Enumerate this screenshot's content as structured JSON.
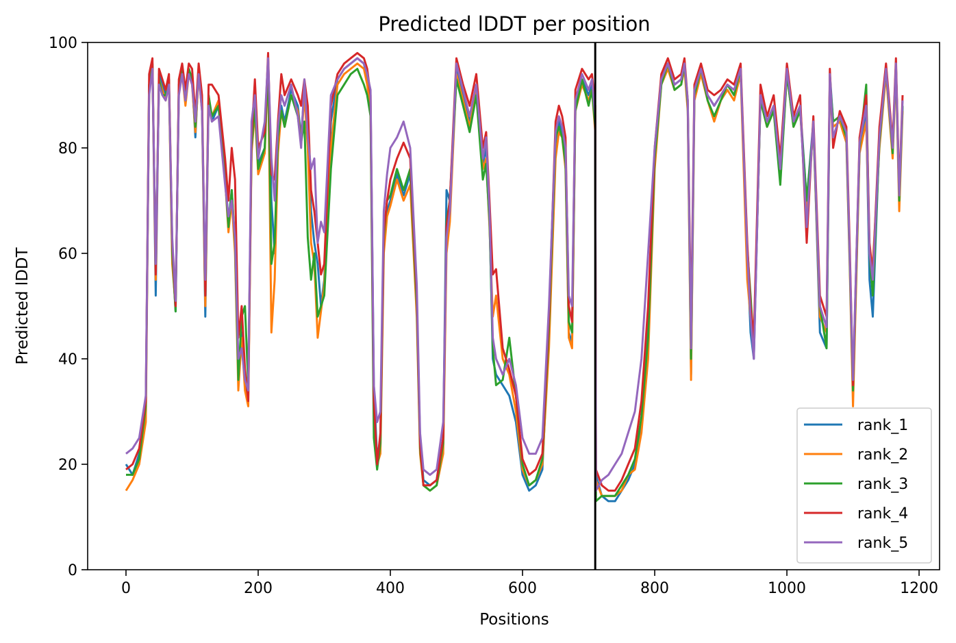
{
  "chart_data": {
    "type": "line",
    "title": "Predicted lDDT per position",
    "xlabel": "Positions",
    "ylabel": "Predicted lDDT",
    "xlim": [
      -58,
      1231
    ],
    "ylim": [
      0,
      100
    ],
    "xticks": [
      0,
      200,
      400,
      600,
      800,
      1000,
      1200
    ],
    "yticks": [
      0,
      20,
      40,
      60,
      80,
      100
    ],
    "grid": false,
    "legend_position": "bottom-right",
    "chain_break": 710,
    "colors": {
      "rank_1": "#1f77b4",
      "rank_2": "#ff7f0e",
      "rank_3": "#2ca02c",
      "rank_4": "#d62728",
      "rank_5": "#9467bd"
    },
    "x": [
      0,
      10,
      20,
      30,
      35,
      40,
      45,
      50,
      55,
      60,
      65,
      70,
      75,
      80,
      85,
      90,
      95,
      100,
      105,
      110,
      115,
      120,
      125,
      130,
      140,
      150,
      155,
      160,
      165,
      170,
      175,
      180,
      185,
      190,
      195,
      200,
      210,
      215,
      220,
      225,
      230,
      235,
      240,
      250,
      260,
      265,
      270,
      275,
      280,
      285,
      290,
      295,
      300,
      310,
      320,
      330,
      340,
      350,
      360,
      365,
      370,
      375,
      380,
      385,
      390,
      395,
      400,
      410,
      420,
      430,
      440,
      445,
      450,
      460,
      470,
      480,
      485,
      490,
      500,
      510,
      520,
      530,
      540,
      545,
      550,
      555,
      560,
      570,
      580,
      590,
      600,
      610,
      620,
      630,
      640,
      650,
      655,
      660,
      665,
      670,
      675,
      680,
      690,
      700,
      705,
      710,
      711,
      720,
      730,
      740,
      750,
      760,
      770,
      780,
      790,
      800,
      810,
      820,
      830,
      840,
      845,
      850,
      855,
      860,
      870,
      880,
      890,
      900,
      910,
      920,
      930,
      940,
      945,
      950,
      960,
      970,
      980,
      990,
      1000,
      1010,
      1020,
      1030,
      1040,
      1050,
      1060,
      1065,
      1070,
      1080,
      1090,
      1095,
      1100,
      1110,
      1120,
      1125,
      1130,
      1140,
      1150,
      1160,
      1165,
      1170,
      1175
    ],
    "series": [
      {
        "name": "rank_1",
        "values": [
          20,
          18,
          22,
          30,
          92,
          96,
          52,
          94,
          92,
          90,
          93,
          60,
          49,
          92,
          95,
          90,
          95,
          93,
          82,
          95,
          88,
          48,
          90,
          85,
          88,
          75,
          66,
          72,
          61,
          37,
          45,
          35,
          33,
          80,
          88,
          77,
          80,
          97,
          70,
          60,
          80,
          88,
          85,
          91,
          88,
          82,
          91,
          83,
          68,
          62,
          58,
          50,
          55,
          85,
          93,
          95,
          96,
          97,
          96,
          93,
          88,
          35,
          21,
          25,
          62,
          68,
          70,
          75,
          71,
          75,
          50,
          25,
          17,
          16,
          17,
          25,
          72,
          70,
          95,
          90,
          85,
          92,
          77,
          80,
          67,
          40,
          37,
          35,
          33,
          28,
          18,
          15,
          16,
          19,
          45,
          80,
          85,
          83,
          78,
          45,
          43,
          88,
          93,
          90,
          92,
          85,
          18,
          14,
          13,
          13,
          15,
          17,
          20,
          28,
          45,
          78,
          93,
          96,
          92,
          93,
          96,
          88,
          37,
          90,
          95,
          90,
          88,
          90,
          92,
          90,
          95,
          60,
          45,
          40,
          90,
          85,
          88,
          75,
          95,
          85,
          88,
          70,
          85,
          45,
          42,
          94,
          85,
          86,
          82,
          60,
          33,
          80,
          86,
          55,
          48,
          82,
          95,
          80,
          96,
          70,
          88
        ]
      },
      {
        "name": "rank_2",
        "values": [
          15,
          17,
          20,
          28,
          91,
          95,
          55,
          93,
          91,
          89,
          92,
          58,
          50,
          91,
          94,
          88,
          94,
          92,
          83,
          94,
          87,
          50,
          89,
          86,
          89,
          74,
          64,
          70,
          60,
          34,
          44,
          34,
          31,
          79,
          87,
          75,
          79,
          96,
          45,
          55,
          79,
          87,
          84,
          90,
          87,
          81,
          90,
          80,
          62,
          58,
          44,
          49,
          54,
          80,
          92,
          94,
          95,
          96,
          95,
          92,
          87,
          30,
          20,
          22,
          60,
          67,
          69,
          74,
          70,
          73,
          48,
          22,
          16,
          15,
          16,
          22,
          60,
          66,
          94,
          89,
          84,
          91,
          76,
          78,
          65,
          48,
          52,
          40,
          37,
          30,
          19,
          16,
          17,
          20,
          42,
          78,
          83,
          82,
          76,
          44,
          42,
          87,
          92,
          89,
          91,
          83,
          17,
          14,
          14,
          14,
          15,
          18,
          19,
          26,
          40,
          76,
          92,
          95,
          91,
          92,
          95,
          87,
          36,
          89,
          94,
          89,
          85,
          89,
          91,
          89,
          94,
          55,
          48,
          42,
          89,
          84,
          87,
          74,
          94,
          84,
          87,
          68,
          84,
          48,
          45,
          93,
          84,
          85,
          81,
          58,
          31,
          79,
          85,
          60,
          58,
          80,
          94,
          78,
          95,
          68,
          87
        ]
      },
      {
        "name": "rank_3",
        "values": [
          18,
          18,
          21,
          31,
          92,
          96,
          57,
          93,
          90,
          90,
          93,
          60,
          49,
          92,
          95,
          89,
          95,
          93,
          84,
          95,
          88,
          52,
          90,
          86,
          88,
          74,
          65,
          72,
          62,
          36,
          48,
          50,
          35,
          80,
          88,
          76,
          80,
          96,
          58,
          62,
          82,
          87,
          84,
          90,
          86,
          81,
          85,
          63,
          55,
          60,
          48,
          50,
          52,
          76,
          90,
          92,
          94,
          95,
          92,
          90,
          86,
          25,
          19,
          24,
          63,
          70,
          71,
          76,
          72,
          76,
          50,
          23,
          16,
          15,
          16,
          24,
          66,
          70,
          93,
          88,
          83,
          90,
          74,
          77,
          66,
          42,
          35,
          36,
          44,
          33,
          20,
          16,
          17,
          21,
          46,
          82,
          84,
          82,
          77,
          47,
          45,
          87,
          93,
          88,
          91,
          84,
          13,
          14,
          14,
          14,
          16,
          18,
          21,
          29,
          44,
          78,
          92,
          96,
          91,
          92,
          96,
          88,
          40,
          90,
          95,
          89,
          86,
          89,
          92,
          90,
          95,
          61,
          52,
          42,
          89,
          84,
          87,
          73,
          94,
          84,
          87,
          70,
          84,
          50,
          42,
          93,
          85,
          86,
          82,
          59,
          34,
          80,
          92,
          60,
          52,
          81,
          95,
          79,
          96,
          70,
          88
        ]
      },
      {
        "name": "rank_4",
        "values": [
          19,
          20,
          23,
          32,
          94,
          97,
          56,
          95,
          93,
          91,
          94,
          62,
          50,
          93,
          96,
          91,
          96,
          95,
          86,
          96,
          90,
          52,
          92,
          92,
          90,
          78,
          70,
          80,
          74,
          44,
          50,
          38,
          32,
          82,
          93,
          80,
          83,
          98,
          75,
          74,
          85,
          94,
          90,
          93,
          90,
          88,
          93,
          88,
          72,
          68,
          62,
          56,
          58,
          88,
          94,
          96,
          97,
          98,
          97,
          95,
          90,
          32,
          20,
          26,
          64,
          70,
          74,
          78,
          81,
          78,
          52,
          24,
          16,
          16,
          17,
          25,
          65,
          70,
          97,
          92,
          88,
          94,
          80,
          83,
          70,
          56,
          57,
          42,
          38,
          33,
          21,
          18,
          19,
          22,
          48,
          85,
          88,
          86,
          82,
          50,
          47,
          91,
          95,
          93,
          94,
          88,
          19,
          16,
          15,
          15,
          17,
          20,
          23,
          32,
          50,
          80,
          94,
          97,
          93,
          94,
          97,
          89,
          45,
          92,
          96,
          91,
          90,
          91,
          93,
          92,
          96,
          62,
          50,
          44,
          92,
          86,
          90,
          78,
          96,
          86,
          90,
          62,
          86,
          52,
          48,
          95,
          80,
          87,
          84,
          62,
          35,
          82,
          90,
          62,
          56,
          84,
          96,
          81,
          97,
          72,
          90
        ]
      },
      {
        "name": "rank_5",
        "values": [
          22,
          23,
          25,
          33,
          90,
          95,
          58,
          92,
          90,
          89,
          92,
          63,
          51,
          90,
          94,
          89,
          94,
          92,
          85,
          94,
          87,
          55,
          88,
          85,
          86,
          73,
          67,
          70,
          63,
          40,
          42,
          36,
          34,
          85,
          90,
          78,
          85,
          97,
          78,
          70,
          84,
          90,
          88,
          92,
          86,
          80,
          93,
          82,
          76,
          78,
          62,
          66,
          64,
          90,
          93,
          95,
          96,
          97,
          96,
          94,
          91,
          35,
          28,
          30,
          68,
          75,
          80,
          82,
          85,
          80,
          54,
          26,
          19,
          18,
          19,
          28,
          63,
          68,
          96,
          91,
          86,
          92,
          78,
          82,
          68,
          44,
          40,
          37,
          40,
          35,
          25,
          22,
          22,
          25,
          50,
          83,
          86,
          84,
          80,
          52,
          50,
          89,
          94,
          91,
          93,
          86,
          15,
          17,
          18,
          20,
          22,
          26,
          30,
          40,
          60,
          80,
          93,
          96,
          92,
          93,
          96,
          89,
          42,
          91,
          95,
          90,
          88,
          90,
          92,
          91,
          95,
          60,
          48,
          40,
          90,
          85,
          88,
          76,
          95,
          85,
          88,
          65,
          85,
          50,
          46,
          94,
          82,
          86,
          83,
          60,
          36,
          81,
          88,
          60,
          55,
          82,
          95,
          80,
          96,
          71,
          89
        ]
      }
    ]
  }
}
